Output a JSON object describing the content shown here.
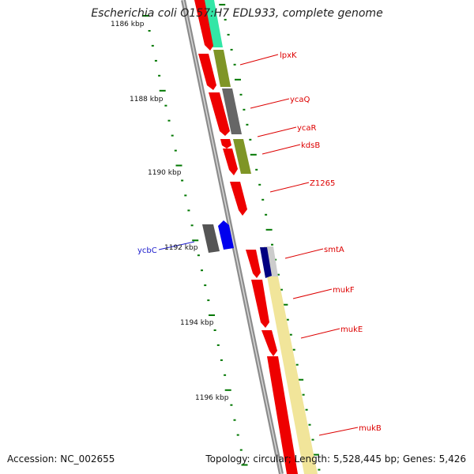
{
  "title": "Escherichia coli O157:H7 EDL933, complete genome",
  "accession_line": "Accession: NC_002655",
  "stats_line": "Topology: circular; Length: 5,528,445 bp; Genes: 5,426",
  "scale_labels": [
    "1186 kbp",
    "1188 kbp",
    "1190 kbp",
    "1192 kbp",
    "1194 kbp",
    "1196 kbp"
  ],
  "gene_labels": [
    {
      "name": "lpxK",
      "color": "#dd0000"
    },
    {
      "name": "ycaQ",
      "color": "#dd0000"
    },
    {
      "name": "ycaR",
      "color": "#dd0000"
    },
    {
      "name": "kdsB",
      "color": "#dd0000"
    },
    {
      "name": "Z1265",
      "color": "#dd0000"
    },
    {
      "name": "smtA",
      "color": "#dd0000"
    },
    {
      "name": "mukF",
      "color": "#dd0000"
    },
    {
      "name": "mukE",
      "color": "#dd0000"
    },
    {
      "name": "mukB",
      "color": "#dd0000"
    },
    {
      "name": "ycbC",
      "color": "#1a1acc"
    }
  ],
  "colors": {
    "cds_forward": "#ee0000",
    "cds_reverse": "#0000ee",
    "backbone": "#8c8c8c",
    "tick": "#007700",
    "cog_teal": "#33e6a6",
    "cog_olive": "#7f9526",
    "cog_gray": "#666666",
    "cog_navy": "#000080",
    "cog_cream": "#f1e59a"
  }
}
